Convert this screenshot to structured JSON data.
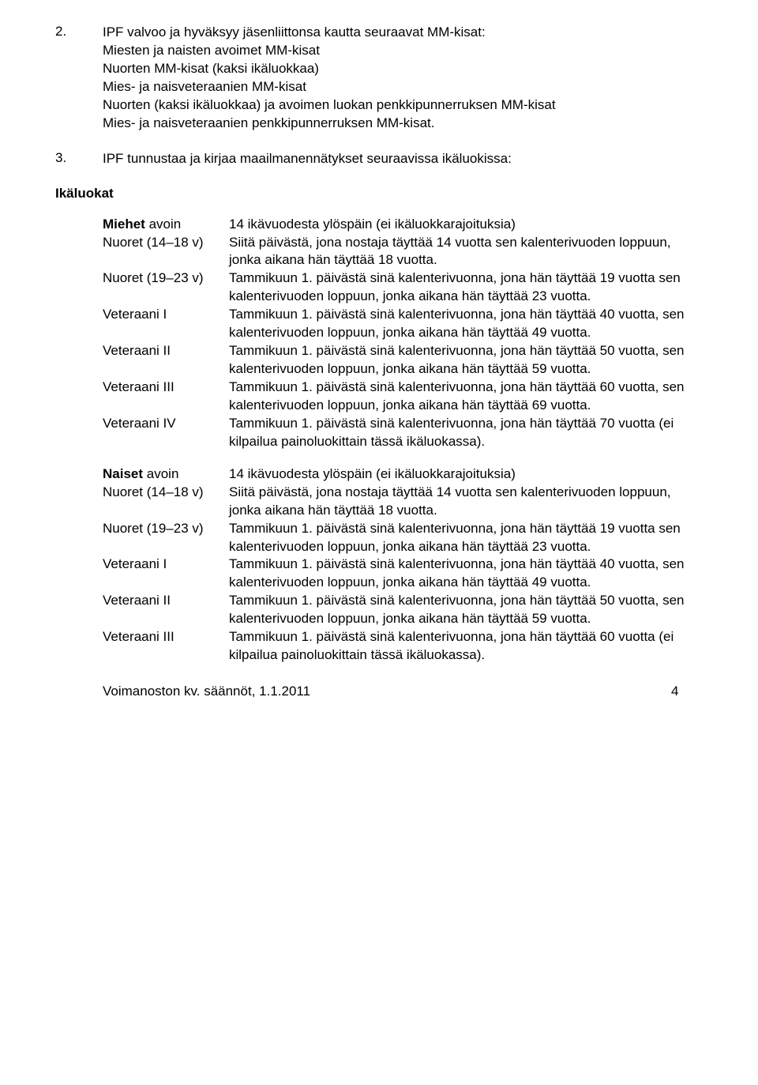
{
  "item2": {
    "num": "2.",
    "text": "IPF valvoo ja hyväksyy jäsenliittonsa kautta seuraavat MM-kisat:\nMiesten ja naisten avoimet MM-kisat\nNuorten MM-kisat (kaksi ikäluokkaa)\nMies- ja naisveteraanien MM-kisat\nNuorten (kaksi ikäluokkaa) ja avoimen luokan penkkipunnerruksen MM-kisat\nMies- ja naisveteraanien penkkipunnerruksen MM-kisat."
  },
  "item3": {
    "num": "3.",
    "text": "IPF tunnustaa ja kirjaa maailmanennätykset seuraavissa ikäluokissa:"
  },
  "heading": "Ikäluokat",
  "defs": {
    "miehet_label": "Miehet",
    "avoin_suffix": " avoin",
    "miehet_avoin_text": "14 ikävuodesta ylöspäin (ei ikäluokkarajoituksia)",
    "n1418_label": "Nuoret (14–18 v)",
    "n1418_text": "Siitä päivästä, jona nostaja täyttää 14 vuotta sen kalenterivuoden loppuun, jonka aikana hän täyttää 18 vuotta.",
    "n1923_label": "Nuoret (19–23 v)",
    "n1923_text": "Tammikuun 1. päivästä sinä kalenterivuonna, jona hän täyttää 19 vuotta sen kalenterivuoden loppuun, jonka aikana hän täyttää 23 vuotta.",
    "v1_label": "Veteraani I",
    "v1_text": "Tammikuun 1. päivästä sinä kalenterivuonna, jona hän täyttää 40 vuotta, sen kalenterivuoden loppuun, jonka aikana hän täyttää 49 vuotta.",
    "v2_label": "Veteraani II",
    "v2_text": "Tammikuun 1. päivästä sinä kalenterivuonna, jona hän täyttää 50 vuotta, sen kalenterivuoden loppuun, jonka aikana hän täyttää 59 vuotta.",
    "v3_label": "Veteraani III",
    "v3_text": "Tammikuun 1. päivästä sinä kalenterivuonna, jona hän täyttää 60 vuotta, sen kalenterivuoden loppuun, jonka aikana hän täyttää 69 vuotta.",
    "v4_label": "Veteraani IV",
    "v4_text": "Tammikuun 1. päivästä sinä kalenterivuonna, jona hän täyttää 70 vuotta (ei kilpailua painoluokittain tässä ikäluokassa).",
    "naiset_label": "Naiset",
    "naiset_avoin_text": "14 ikävuodesta ylöspäin (ei ikäluokkarajoituksia)",
    "n1418b_text": "Siitä päivästä, jona nostaja täyttää 14 vuotta sen kalenterivuoden loppuun, jonka aikana hän täyttää 18 vuotta.",
    "n1923b_text": "Tammikuun 1. päivästä sinä kalenterivuonna, jona hän täyttää 19 vuotta sen kalenterivuoden loppuun, jonka aikana hän täyttää 23 vuotta.",
    "v1b_text": "Tammikuun 1. päivästä sinä kalenterivuonna, jona hän täyttää 40 vuotta, sen kalenterivuoden loppuun, jonka aikana hän täyttää 49 vuotta.",
    "v2b_text": "Tammikuun 1. päivästä sinä kalenterivuonna, jona hän täyttää 50 vuotta, sen kalenterivuoden loppuun, jonka aikana hän täyttää 59 vuotta.",
    "v3b_text": "Tammikuun 1. päivästä sinä kalenterivuonna, jona hän täyttää 60 vuotta (ei kilpailua painoluokittain tässä ikäluokassa)."
  },
  "footer": {
    "left": "Voimanoston kv. säännöt, 1.1.2011",
    "page": "4"
  }
}
